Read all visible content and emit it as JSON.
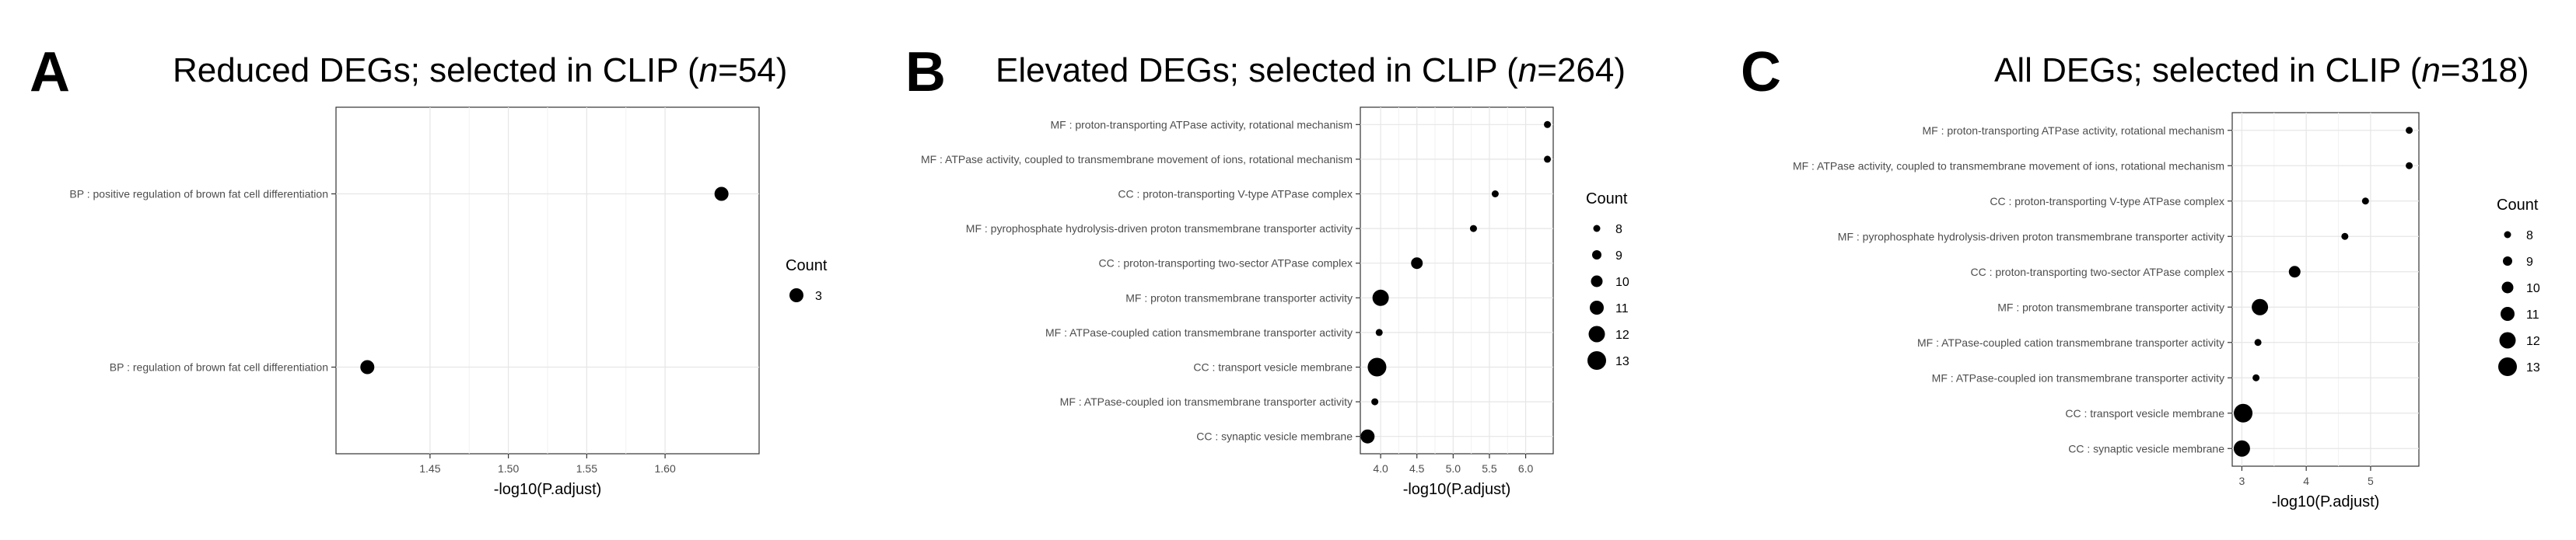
{
  "chart_data": [
    {
      "panel": "A",
      "title_prefix": "Reduced DEGs; selected in CLIP (",
      "title_n": "n",
      "title_suffix": "=54)",
      "type": "scatter",
      "xlabel": "-log10(P.adjust)",
      "xlim": [
        1.39,
        1.66
      ],
      "xticks": [
        1.45,
        1.5,
        1.55,
        1.6
      ],
      "xtick_labels": [
        "1.45",
        "1.50",
        "1.55",
        "1.60"
      ],
      "categories": [
        "BP : positive regulation of brown fat cell differentiation",
        "BP : regulation of brown fat cell differentiation"
      ],
      "x": [
        1.636,
        1.41
      ],
      "counts": [
        3,
        3
      ],
      "legend_title": "Count",
      "legend_values": [
        3
      ],
      "legend_labels": [
        "3"
      ],
      "size_range": [
        3,
        3
      ]
    },
    {
      "panel": "B",
      "title_prefix": "Elevated DEGs; selected in CLIP (",
      "title_n": "n",
      "title_suffix": "=264)",
      "type": "scatter",
      "xlabel": "-log10(P.adjust)",
      "xlim": [
        3.72,
        6.38
      ],
      "xticks": [
        4.0,
        4.5,
        5.0,
        5.5,
        6.0
      ],
      "xtick_labels": [
        "4.0",
        "4.5",
        "5.0",
        "5.5",
        "6.0"
      ],
      "categories": [
        "MF : proton-transporting ATPase activity, rotational mechanism",
        "MF : ATPase activity, coupled to transmembrane movement of ions, rotational mechanism",
        "CC : proton-transporting V-type ATPase complex",
        "MF : pyrophosphate hydrolysis-driven proton transmembrane transporter activity",
        "CC : proton-transporting two-sector ATPase complex",
        "MF : proton transmembrane transporter activity",
        "MF : ATPase-coupled cation transmembrane transporter activity",
        "CC : transport vesicle membrane",
        "MF : ATPase-coupled ion transmembrane transporter activity",
        "CC : synaptic vesicle membrane"
      ],
      "x": [
        6.3,
        6.3,
        5.58,
        5.28,
        4.5,
        4.0,
        3.98,
        3.95,
        3.92,
        3.82
      ],
      "counts": [
        8,
        8,
        8,
        8,
        10,
        12,
        8,
        13,
        8,
        11
      ],
      "legend_title": "Count",
      "legend_values": [
        8,
        9,
        10,
        11,
        12,
        13
      ],
      "legend_labels": [
        "8",
        "9",
        "10",
        "11",
        "12",
        "13"
      ],
      "size_range": [
        8,
        13
      ]
    },
    {
      "panel": "C",
      "title_prefix": "All DEGs; selected in CLIP (",
      "title_n": "n",
      "title_suffix": "=318)",
      "type": "scatter",
      "xlabel": "-log10(P.adjust)",
      "xlim": [
        2.85,
        5.75
      ],
      "xticks": [
        3,
        4,
        5
      ],
      "xtick_labels": [
        "3",
        "4",
        "5"
      ],
      "categories": [
        "MF : proton-transporting ATPase activity, rotational mechanism",
        "MF : ATPase activity, coupled to transmembrane movement of ions, rotational mechanism",
        "CC : proton-transporting V-type ATPase complex",
        "MF : pyrophosphate hydrolysis-driven proton transmembrane transporter activity",
        "CC : proton-transporting two-sector ATPase complex",
        "MF : proton transmembrane transporter activity",
        "MF : ATPase-coupled cation transmembrane transporter activity",
        "MF : ATPase-coupled ion transmembrane transporter activity",
        "CC : transport vesicle membrane",
        "CC : synaptic vesicle membrane"
      ],
      "x": [
        5.6,
        5.6,
        4.92,
        4.6,
        3.82,
        3.28,
        3.25,
        3.22,
        3.02,
        3.0
      ],
      "counts": [
        8,
        8,
        8,
        8,
        10,
        12,
        8,
        8,
        13,
        12
      ],
      "legend_title": "Count",
      "legend_values": [
        8,
        9,
        10,
        11,
        12,
        13
      ],
      "legend_labels": [
        "8",
        "9",
        "10",
        "11",
        "12",
        "13"
      ],
      "size_range": [
        8,
        13
      ]
    }
  ]
}
